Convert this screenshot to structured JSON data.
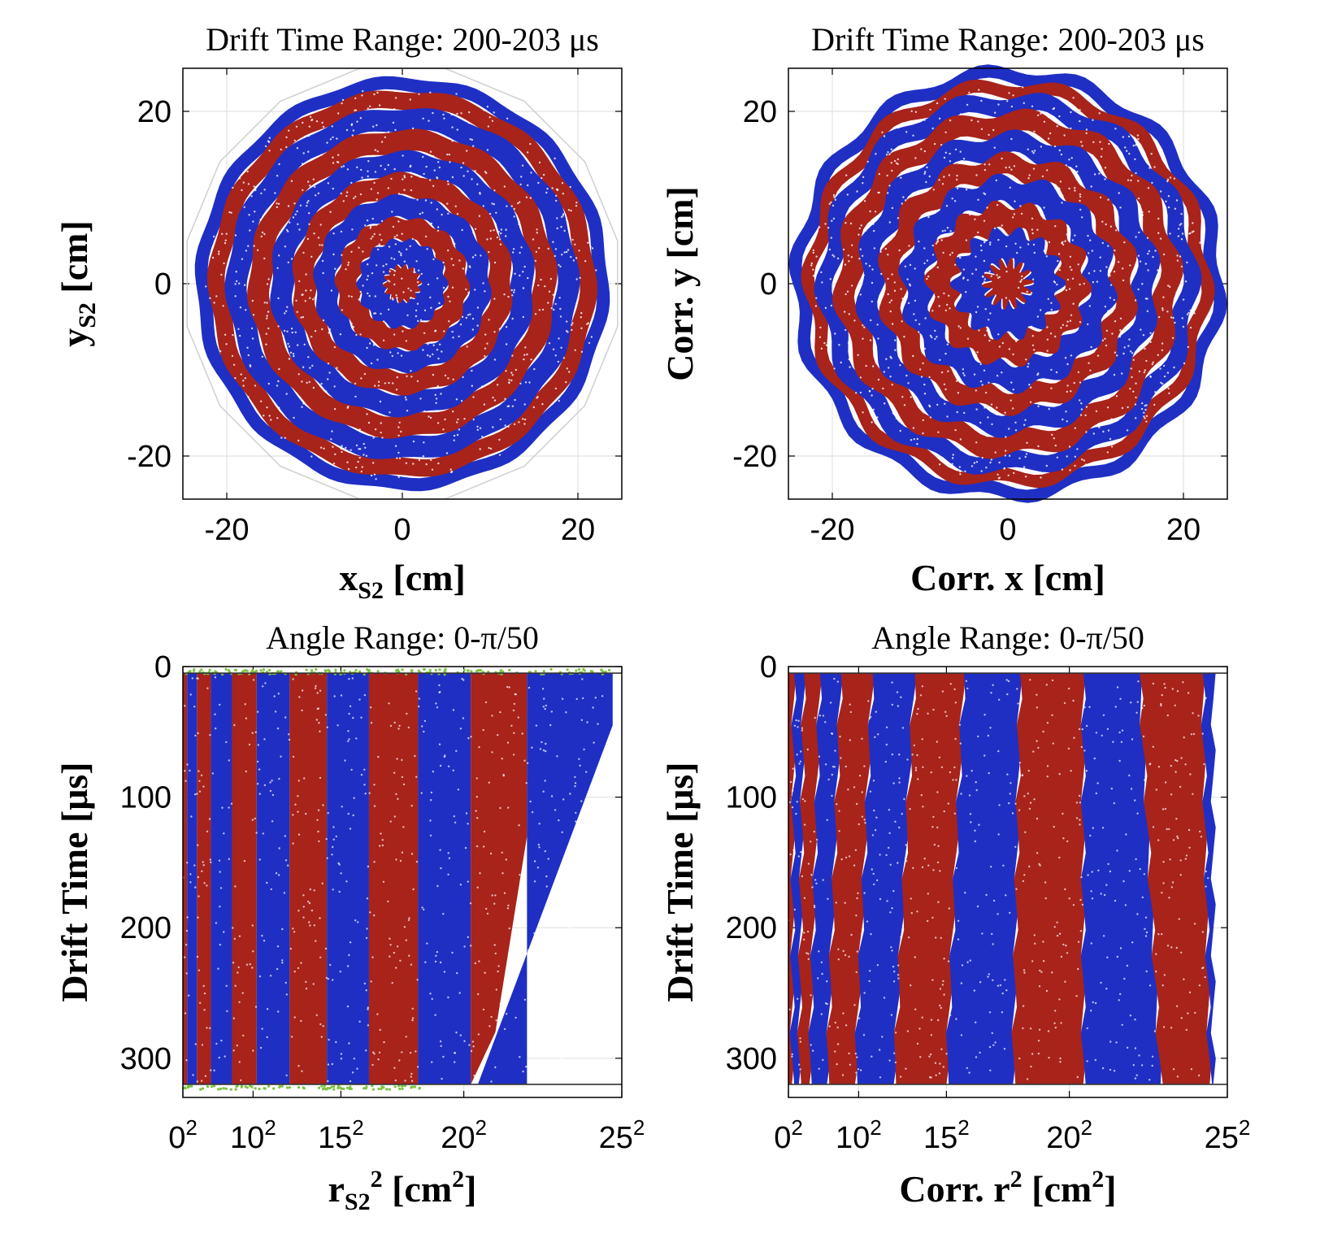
{
  "chart_data": [
    {
      "id": "top-left",
      "type": "scatter",
      "title": "Drift Time Range: 200-203 μs",
      "xlabel": "x",
      "xlabel_sub": "S2",
      "xlabel_unit": " [cm]",
      "ylabel": "y",
      "ylabel_sub": "S2",
      "ylabel_unit": " [cm]",
      "xlim": [
        -25,
        25
      ],
      "ylim": [
        -25,
        25
      ],
      "xticks": [
        -20,
        0,
        20
      ],
      "xtick_labels": [
        "-20",
        "0",
        "20"
      ],
      "yticks": [
        -20,
        0,
        20
      ],
      "ytick_labels": [
        "-20",
        "0",
        "20"
      ],
      "grid": true,
      "series": [
        {
          "color": "#1f2fc4",
          "ring_radii_cm": [
            [
              2,
              5
            ],
            [
              7.5,
              10
            ],
            [
              12.5,
              15
            ],
            [
              17.5,
              20
            ],
            [
              22,
              23.5
            ]
          ]
        },
        {
          "color": "#a8231a",
          "ring_radii_cm": [
            [
              0,
              2
            ],
            [
              5,
              7.5
            ],
            [
              10,
              12.5
            ],
            [
              15,
              17.5
            ],
            [
              20,
              22
            ]
          ]
        }
      ],
      "outline_radius_cm": 25,
      "outline_sides": 16
    },
    {
      "id": "top-right",
      "type": "scatter",
      "title": "Drift Time Range: 200-203 μs",
      "xlabel": "Corr. x [cm]",
      "ylabel": "Corr. y [cm]",
      "xlim": [
        -25,
        25
      ],
      "ylim": [
        -25,
        25
      ],
      "xticks": [
        -20,
        0,
        20
      ],
      "xtick_labels": [
        "-20",
        "0",
        "20"
      ],
      "yticks": [
        -20,
        0,
        20
      ],
      "ytick_labels": [
        "-20",
        "0",
        "20"
      ],
      "grid": true,
      "series": [
        {
          "color": "#1f2fc4",
          "ring_radii_cm": [
            [
              2.4,
              6
            ],
            [
              9,
              12
            ],
            [
              14.5,
              17
            ],
            [
              19.5,
              21.5
            ],
            [
              23,
              24.5
            ]
          ]
        },
        {
          "color": "#a8231a",
          "ring_radii_cm": [
            [
              0,
              2.4
            ],
            [
              6,
              9
            ],
            [
              12,
              14.5
            ],
            [
              17,
              19.5
            ],
            [
              21.5,
              23
            ]
          ]
        }
      ],
      "polygon_sides": 14
    },
    {
      "id": "bottom-left",
      "type": "scatter",
      "title": "Angle Range: 0-π/50",
      "xlabel": "r",
      "xlabel_sub": "S2",
      "xlabel_sup": "2",
      "xlabel_unit": " [cm",
      "xlabel_unit_sup": "2",
      "xlabel_unit_end": "]",
      "ylabel": "Drift Time [μs]",
      "xlim": [
        0,
        625
      ],
      "ylim": [
        0,
        330
      ],
      "y_reversed": true,
      "xticks": [
        0,
        100,
        225,
        400,
        625
      ],
      "xtick_bases": [
        "0",
        "10",
        "15",
        "20",
        "25"
      ],
      "xtick_sup": "2",
      "yticks": [
        0,
        100,
        200,
        300
      ],
      "ytick_labels": [
        "0",
        "100",
        "200",
        "300"
      ],
      "grid": true,
      "hlines": [
        5,
        320
      ],
      "bands_r2": [
        {
          "color": "#a8231a",
          "range": [
            0,
            6
          ]
        },
        {
          "color": "#1f2fc4",
          "range": [
            6,
            20
          ]
        },
        {
          "color": "#a8231a",
          "range": [
            20,
            40
          ]
        },
        {
          "color": "#1f2fc4",
          "range": [
            40,
            70
          ]
        },
        {
          "color": "#a8231a",
          "range": [
            70,
            105
          ]
        },
        {
          "color": "#1f2fc4",
          "range": [
            105,
            152
          ]
        },
        {
          "color": "#a8231a",
          "range": [
            152,
            205
          ]
        },
        {
          "color": "#1f2fc4",
          "range": [
            205,
            265
          ]
        },
        {
          "color": "#a8231a",
          "range": [
            265,
            335
          ]
        },
        {
          "color": "#1f2fc4",
          "range": [
            335,
            410
          ]
        },
        {
          "color": "#a8231a",
          "range": [
            410,
            490
          ]
        },
        {
          "color": "#1f2fc4",
          "range": [
            490,
            612
          ]
        }
      ],
      "edge_color": "#7dc242"
    },
    {
      "id": "bottom-right",
      "type": "scatter",
      "title": "Angle Range: 0-π/50",
      "xlabel": "Corr. r",
      "xlabel_sup": "2",
      "xlabel_unit": " [cm",
      "xlabel_unit_sup": "2",
      "xlabel_unit_end": "]",
      "ylabel": "Drift Time [μs]",
      "xlim": [
        0,
        625
      ],
      "ylim": [
        0,
        330
      ],
      "y_reversed": true,
      "xticks": [
        0,
        100,
        225,
        400,
        625
      ],
      "xtick_bases": [
        "0",
        "10",
        "15",
        "20",
        "25"
      ],
      "xtick_sup": "2",
      "yticks": [
        0,
        100,
        200,
        300
      ],
      "ytick_labels": [
        "0",
        "100",
        "200",
        "300"
      ],
      "grid": true,
      "hlines": [
        5,
        320
      ],
      "bands_r2_top": [
        0,
        8,
        22,
        45,
        75,
        120,
        180,
        250,
        330,
        420,
        500,
        590,
        605
      ],
      "bands_r2_bottom": [
        0,
        5,
        15,
        30,
        55,
        95,
        150,
        225,
        320,
        420,
        530,
        600,
        605
      ],
      "band_colors": [
        "#a8231a",
        "#1f2fc4",
        "#a8231a",
        "#1f2fc4",
        "#a8231a",
        "#1f2fc4",
        "#a8231a",
        "#1f2fc4",
        "#a8231a",
        "#1f2fc4",
        "#a8231a",
        "#1f2fc4"
      ]
    }
  ]
}
